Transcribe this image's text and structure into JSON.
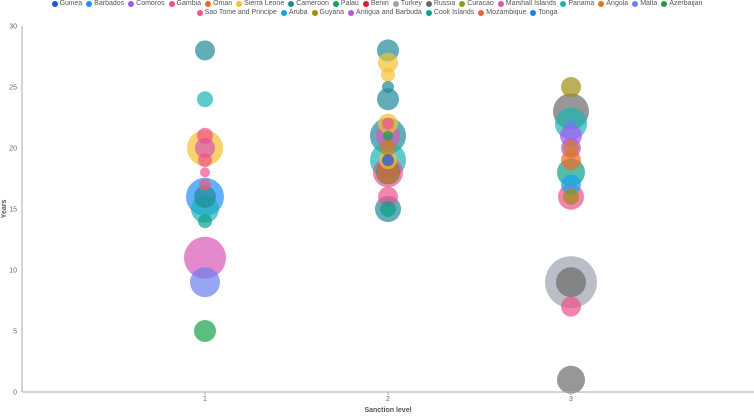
{
  "chart_data": {
    "type": "scatter",
    "title": "",
    "xlabel": "Sanction level",
    "ylabel": "Years",
    "xlim": [
      0,
      4
    ],
    "ylim": [
      0,
      30
    ],
    "xticks": [
      "1",
      "2",
      "3"
    ],
    "yticks": [
      "0",
      "5",
      "10",
      "15",
      "20",
      "25",
      "30"
    ],
    "grid": false,
    "legend_position": "top",
    "legend": [
      {
        "name": "Guinea",
        "color": "#1a56db"
      },
      {
        "name": "Barbados",
        "color": "#1e90ff"
      },
      {
        "name": "Comoros",
        "color": "#a855f7"
      },
      {
        "name": "Gambia",
        "color": "#f0508a"
      },
      {
        "name": "Oman",
        "color": "#f26b1d"
      },
      {
        "name": "Sierra Leone",
        "color": "#f5c02f"
      },
      {
        "name": "Cameroon",
        "color": "#1f8a99"
      },
      {
        "name": "Palau",
        "color": "#16a34a"
      },
      {
        "name": "Benin",
        "color": "#dc1c2e"
      },
      {
        "name": "Turkey",
        "color": "#9ca3af"
      },
      {
        "name": "Russia",
        "color": "#6b6b6b"
      },
      {
        "name": "Curacao",
        "color": "#84a31a"
      },
      {
        "name": "Marshall Islands",
        "color": "#d957b5"
      },
      {
        "name": "Panama",
        "color": "#19b3b3"
      },
      {
        "name": "Angola",
        "color": "#d97a1e"
      },
      {
        "name": "Malta",
        "color": "#6b7ff0"
      },
      {
        "name": "Azerbaijan",
        "color": "#1f9a3f"
      },
      {
        "name": "Sao Tome and Principe",
        "color": "#ec5a7c"
      },
      {
        "name": "Aruba",
        "color": "#0ea5e9"
      },
      {
        "name": "Guyana",
        "color": "#9b8f12"
      },
      {
        "name": "Antigua and Barbuda",
        "color": "#b25cd6"
      },
      {
        "name": "Cook Islands",
        "color": "#0d9f8a"
      },
      {
        "name": "Mozambique",
        "color": "#e8613d"
      },
      {
        "name": "Tonga",
        "color": "#1a7ff0"
      }
    ],
    "legend_rows": [
      17,
      7
    ],
    "points": [
      {
        "x": 1,
        "y": 28,
        "size": 10,
        "series": "Cameroon"
      },
      {
        "x": 1,
        "y": 24,
        "size": 8,
        "series": "Panama"
      },
      {
        "x": 1,
        "y": 21,
        "size": 8,
        "series": "Gambia"
      },
      {
        "x": 1,
        "y": 20,
        "size": 18,
        "series": "Sierra Leone"
      },
      {
        "x": 1,
        "y": 20,
        "size": 10,
        "series": "Marshall Islands"
      },
      {
        "x": 1,
        "y": 19,
        "size": 7,
        "series": "Gambia"
      },
      {
        "x": 1,
        "y": 18,
        "size": 5,
        "series": "Gambia"
      },
      {
        "x": 1,
        "y": 17,
        "size": 6,
        "series": "Sao Tome and Principe"
      },
      {
        "x": 1,
        "y": 15,
        "size": 14,
        "series": "Panama"
      },
      {
        "x": 1,
        "y": 14,
        "size": 7,
        "series": "Cook Islands"
      },
      {
        "x": 1,
        "y": 16,
        "size": 19,
        "series": "Barbados"
      },
      {
        "x": 1,
        "y": 16,
        "size": 11,
        "series": "Cameroon"
      },
      {
        "x": 1,
        "y": 11,
        "size": 21,
        "series": "Marshall Islands"
      },
      {
        "x": 1,
        "y": 9,
        "size": 15,
        "series": "Malta"
      },
      {
        "x": 1,
        "y": 5,
        "size": 11,
        "series": "Palau"
      },
      {
        "x": 2,
        "y": 28,
        "size": 11,
        "series": "Cameroon"
      },
      {
        "x": 2,
        "y": 27,
        "size": 10,
        "series": "Sierra Leone"
      },
      {
        "x": 2,
        "y": 26,
        "size": 7,
        "series": "Sierra Leone"
      },
      {
        "x": 2,
        "y": 25,
        "size": 6,
        "series": "Cameroon"
      },
      {
        "x": 2,
        "y": 24,
        "size": 11,
        "series": "Cameroon"
      },
      {
        "x": 2,
        "y": 22,
        "size": 10,
        "series": "Sierra Leone"
      },
      {
        "x": 2,
        "y": 22,
        "size": 6,
        "series": "Gambia"
      },
      {
        "x": 2,
        "y": 21,
        "size": 18,
        "series": "Cameroon"
      },
      {
        "x": 2,
        "y": 21,
        "size": 12,
        "series": "Marshall Islands"
      },
      {
        "x": 2,
        "y": 21,
        "size": 5,
        "series": "Palau"
      },
      {
        "x": 2,
        "y": 20,
        "size": 8,
        "series": "Angola"
      },
      {
        "x": 2,
        "y": 19,
        "size": 18,
        "series": "Panama"
      },
      {
        "x": 2,
        "y": 19,
        "size": 9,
        "series": "Sierra Leone"
      },
      {
        "x": 2,
        "y": 19,
        "size": 6,
        "series": "Guinea"
      },
      {
        "x": 2,
        "y": 18,
        "size": 15,
        "series": "Gambia"
      },
      {
        "x": 2,
        "y": 18,
        "size": 12,
        "series": "Palau"
      },
      {
        "x": 2,
        "y": 18,
        "size": 11,
        "series": "Mozambique"
      },
      {
        "x": 2,
        "y": 16,
        "size": 10,
        "series": "Gambia"
      },
      {
        "x": 2,
        "y": 15,
        "size": 13,
        "series": "Cameroon"
      },
      {
        "x": 2,
        "y": 15,
        "size": 8,
        "series": "Cook Islands"
      },
      {
        "x": 3,
        "y": 25,
        "size": 10,
        "series": "Guyana"
      },
      {
        "x": 3,
        "y": 22,
        "size": 16,
        "series": "Panama"
      },
      {
        "x": 3,
        "y": 23,
        "size": 18,
        "series": "Russia"
      },
      {
        "x": 3,
        "y": 22,
        "size": 4,
        "series": "Malta"
      },
      {
        "x": 3,
        "y": 21,
        "size": 11,
        "series": "Comoros"
      },
      {
        "x": 3,
        "y": 20,
        "size": 10,
        "series": "Comoros"
      },
      {
        "x": 3,
        "y": 20,
        "size": 8,
        "series": "Angola"
      },
      {
        "x": 3,
        "y": 18,
        "size": 14,
        "series": "Cook Islands"
      },
      {
        "x": 3,
        "y": 19,
        "size": 10,
        "series": "Oman"
      },
      {
        "x": 3,
        "y": 17,
        "size": 10,
        "series": "Aruba"
      },
      {
        "x": 3,
        "y": 16,
        "size": 13,
        "series": "Gambia"
      },
      {
        "x": 3,
        "y": 16,
        "size": 8,
        "series": "Guyana"
      },
      {
        "x": 3,
        "y": 9,
        "size": 26,
        "series": "Turkey"
      },
      {
        "x": 3,
        "y": 9,
        "size": 15,
        "series": "Russia"
      },
      {
        "x": 3,
        "y": 7,
        "size": 10,
        "series": "Gambia"
      },
      {
        "x": 3,
        "y": 1,
        "size": 14,
        "series": "Russia"
      }
    ]
  }
}
